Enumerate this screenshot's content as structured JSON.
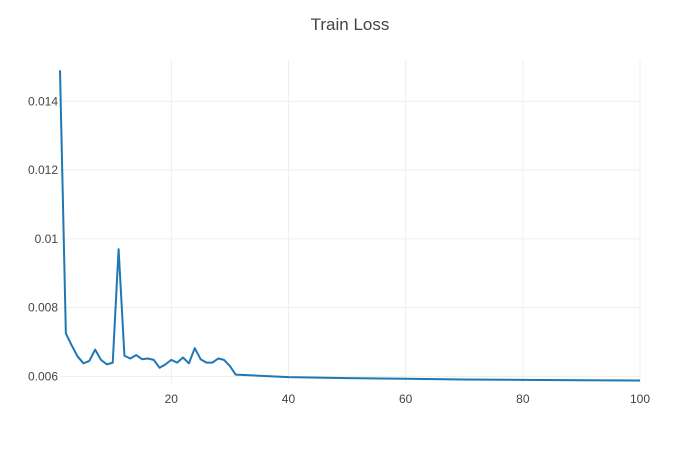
{
  "chart_data": {
    "type": "line",
    "title": "Train Loss",
    "xlabel": "",
    "ylabel": "",
    "xlim": [
      1,
      100
    ],
    "ylim": [
      0.00575,
      0.0152
    ],
    "grid": true,
    "legend": "none",
    "colors": {
      "line": "#1f77b4",
      "grid": "#eeeeee",
      "text": "#444444"
    },
    "x_ticks": [
      {
        "value": 20,
        "label": "20"
      },
      {
        "value": 40,
        "label": "40"
      },
      {
        "value": 60,
        "label": "60"
      },
      {
        "value": 80,
        "label": "80"
      },
      {
        "value": 100,
        "label": "100"
      }
    ],
    "y_ticks": [
      {
        "value": 0.006,
        "label": "0.006"
      },
      {
        "value": 0.008,
        "label": "0.008"
      },
      {
        "value": 0.01,
        "label": "0.01"
      },
      {
        "value": 0.012,
        "label": "0.012"
      },
      {
        "value": 0.014,
        "label": "0.014"
      }
    ],
    "series": [
      {
        "x": [
          1,
          2,
          3,
          4,
          5,
          6,
          7,
          8,
          9,
          10,
          11,
          12,
          13,
          14,
          15,
          16,
          17,
          18,
          19,
          20,
          21,
          22,
          23,
          24,
          25,
          26,
          27,
          28,
          29,
          30,
          31,
          35,
          40,
          50,
          60,
          70,
          80,
          90,
          100
        ],
        "y": [
          0.0149,
          0.00725,
          0.0069,
          0.00658,
          0.00638,
          0.00645,
          0.00678,
          0.00648,
          0.00635,
          0.0064,
          0.0097,
          0.0066,
          0.00652,
          0.00662,
          0.0065,
          0.00652,
          0.00648,
          0.00625,
          0.00635,
          0.00648,
          0.0064,
          0.00655,
          0.00638,
          0.00682,
          0.0065,
          0.0064,
          0.0064,
          0.00652,
          0.00648,
          0.0063,
          0.00605,
          0.00602,
          0.00598,
          0.00595,
          0.00593,
          0.00591,
          0.0059,
          0.00589,
          0.00588
        ]
      }
    ]
  }
}
